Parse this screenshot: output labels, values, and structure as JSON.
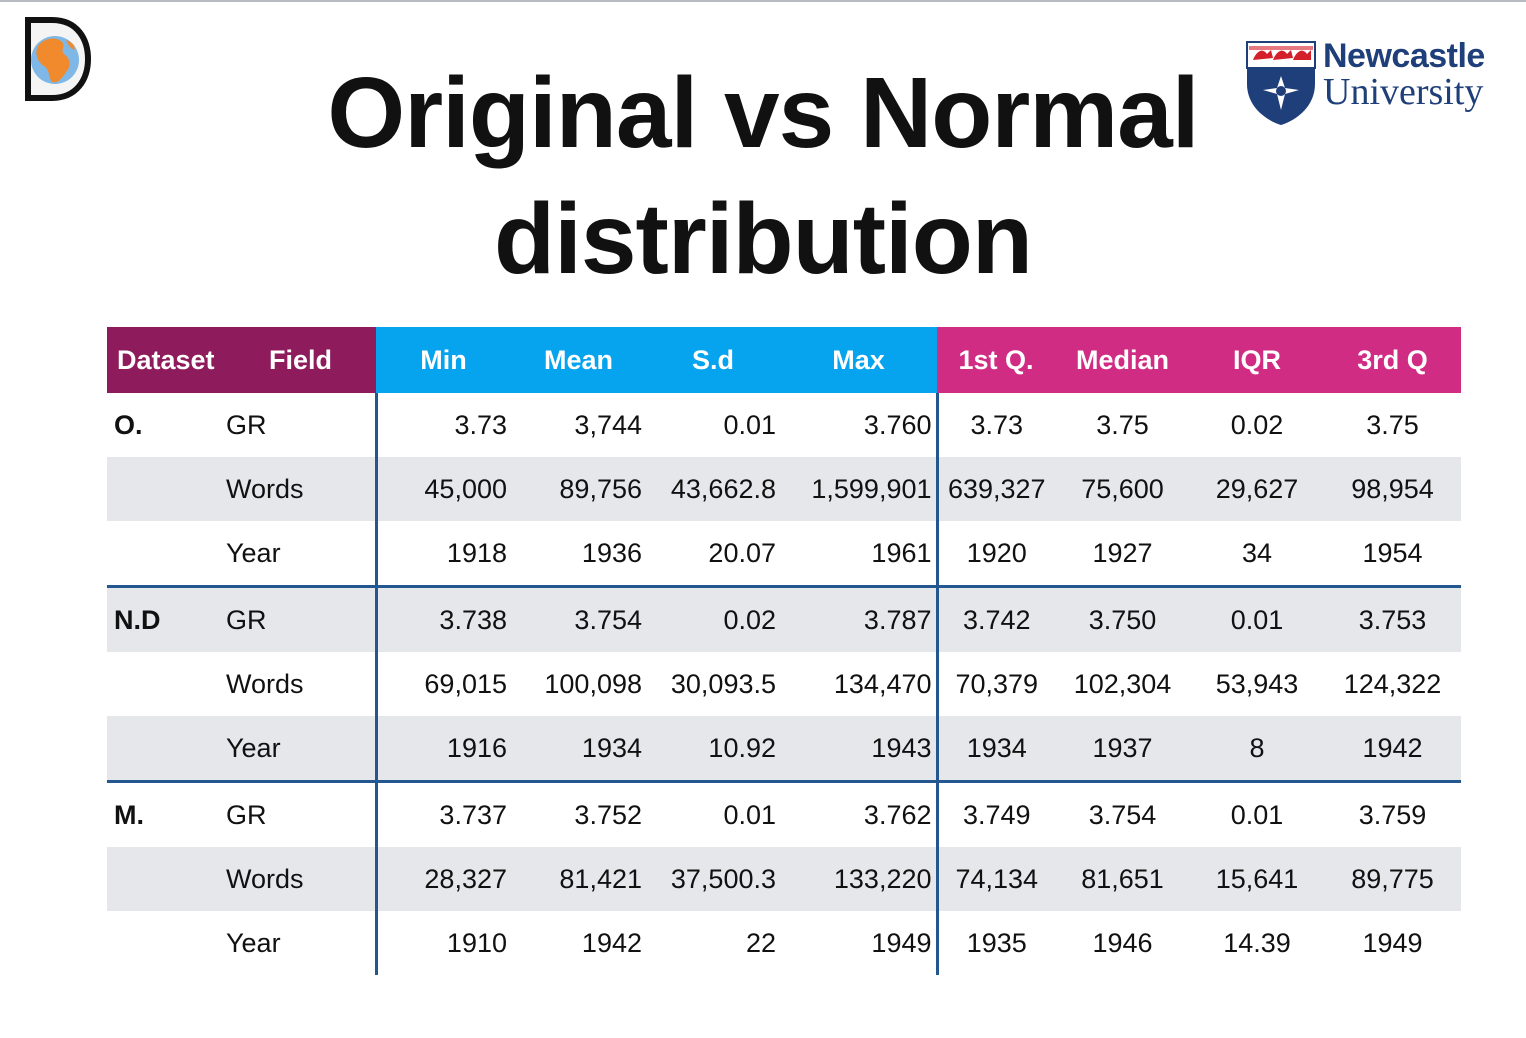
{
  "title": {
    "line1": "Original vs Normal",
    "line2": "distribution"
  },
  "logos": {
    "left_icon": "globe-d-logo-icon",
    "right": {
      "line1": "Newcastle",
      "line2": "University",
      "shield_icon": "university-shield-icon"
    }
  },
  "colors": {
    "header_group_1": "#8e1b5b",
    "header_group_2": "#06a3ee",
    "header_group_3": "#d02c83",
    "divider": "#23578f",
    "row_shade": "#e6e7eb"
  },
  "table": {
    "headers": [
      "Dataset",
      "Field",
      "Min",
      "Mean",
      "S.d",
      "Max",
      "1st Q.",
      "Median",
      "IQR",
      "3rd Q"
    ],
    "rows": [
      {
        "dataset": "O.",
        "field": "GR",
        "min": "3.73",
        "mean": "3,744",
        "sd": "0.01",
        "max": "3.760",
        "q1": "3.73",
        "median": "3.75",
        "iqr": "0.02",
        "q3": "3.75"
      },
      {
        "dataset": "",
        "field": "Words",
        "min": "45,000",
        "mean": "89,756",
        "sd": "43,662.8",
        "max": "1,599,901",
        "q1": "639,327",
        "median": "75,600",
        "iqr": "29,627",
        "q3": "98,954"
      },
      {
        "dataset": "",
        "field": "Year",
        "min": "1918",
        "mean": "1936",
        "sd": "20.07",
        "max": "1961",
        "q1": "1920",
        "median": "1927",
        "iqr": "34",
        "q3": "1954"
      },
      {
        "dataset": "N.D",
        "field": "GR",
        "min": "3.738",
        "mean": "3.754",
        "sd": "0.02",
        "max": "3.787",
        "q1": "3.742",
        "median": "3.750",
        "iqr": "0.01",
        "q3": "3.753"
      },
      {
        "dataset": "",
        "field": "Words",
        "min": "69,015",
        "mean": "100,098",
        "sd": "30,093.5",
        "max": "134,470",
        "q1": "70,379",
        "median": "102,304",
        "iqr": "53,943",
        "q3": "124,322"
      },
      {
        "dataset": "",
        "field": "Year",
        "min": "1916",
        "mean": "1934",
        "sd": "10.92",
        "max": "1943",
        "q1": "1934",
        "median": "1937",
        "iqr": "8",
        "q3": "1942"
      },
      {
        "dataset": "M.",
        "field": "GR",
        "min": "3.737",
        "mean": "3.752",
        "sd": "0.01",
        "max": "3.762",
        "q1": "3.749",
        "median": "3.754",
        "iqr": "0.01",
        "q3": "3.759"
      },
      {
        "dataset": "",
        "field": "Words",
        "min": "28,327",
        "mean": "81,421",
        "sd": "37,500.3",
        "max": "133,220",
        "q1": "74,134",
        "median": "81,651",
        "iqr": "15,641",
        "q3": "89,775"
      },
      {
        "dataset": "",
        "field": "Year",
        "min": "1910",
        "mean": "1942",
        "sd": "22",
        "max": "1949",
        "q1": "1935",
        "median": "1946",
        "iqr": "14.39",
        "q3": "1949"
      }
    ]
  }
}
